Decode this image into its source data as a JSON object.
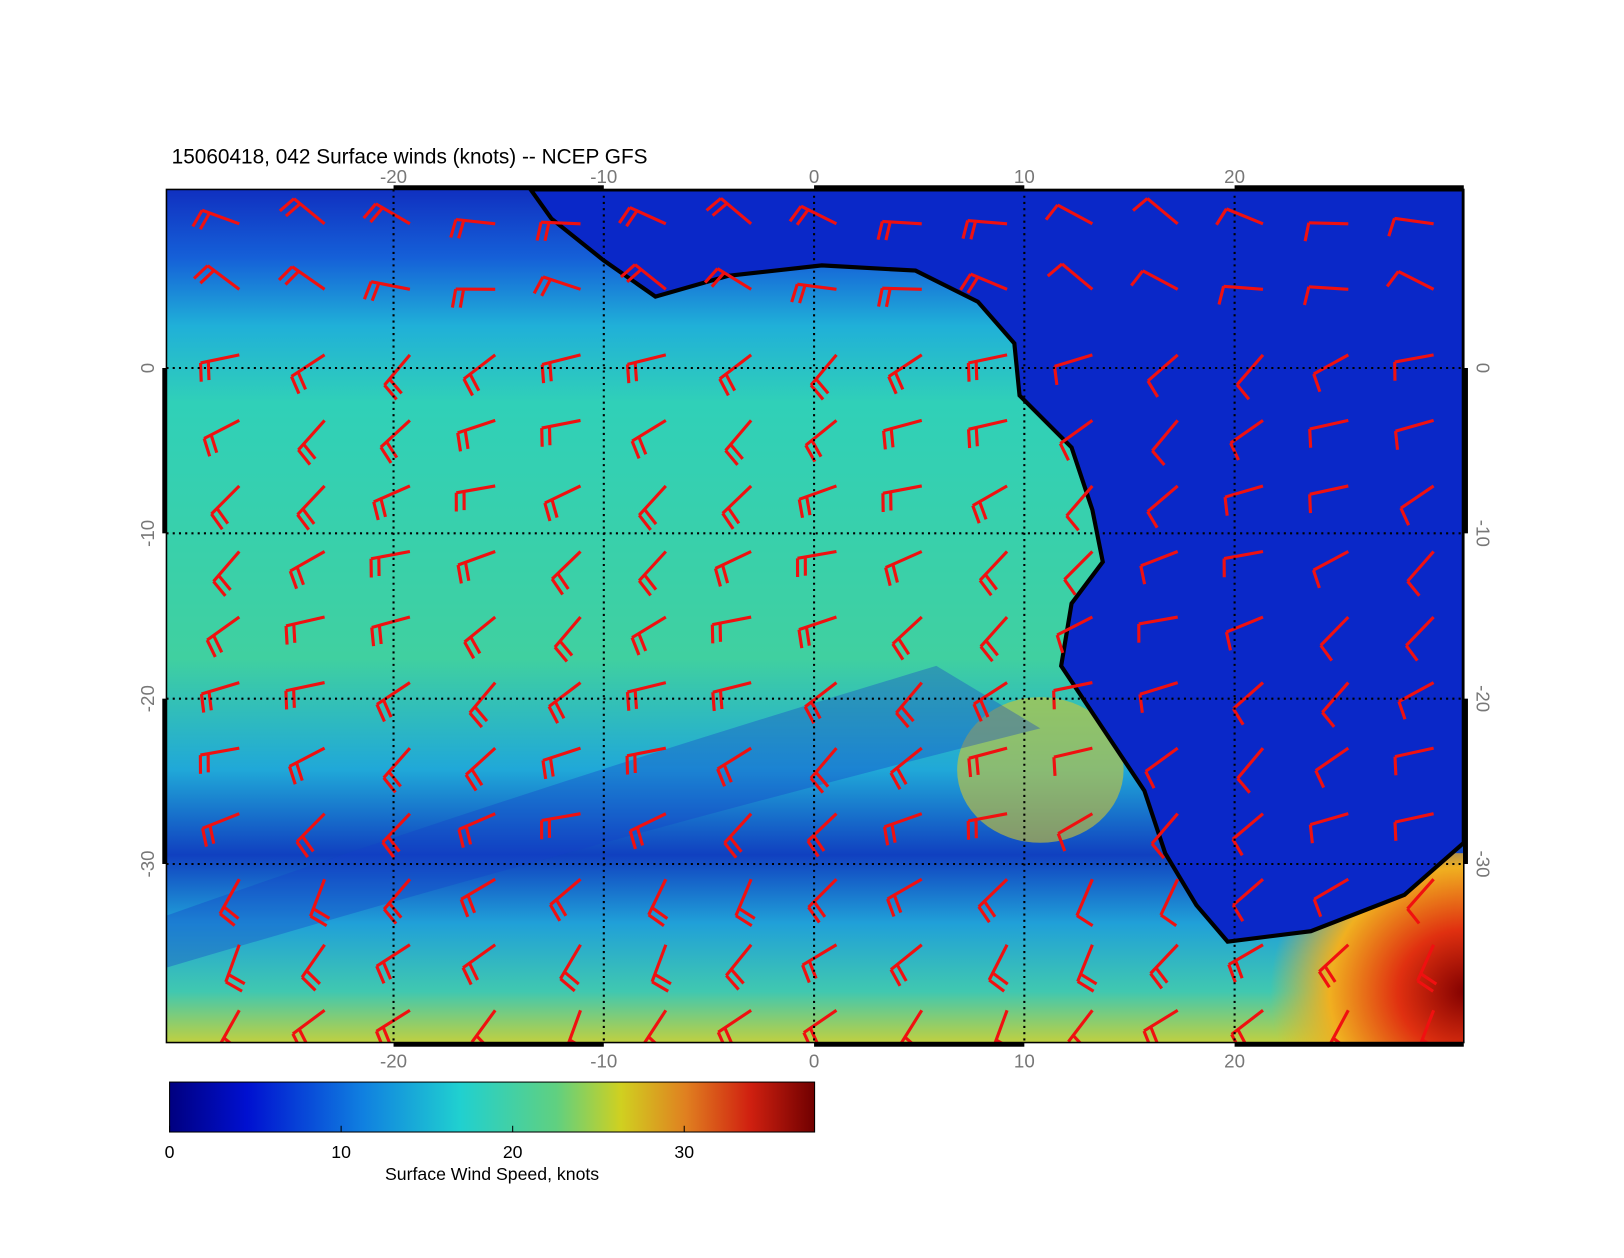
{
  "title": "15060418, 042 Surface winds (knots) -- NCEP GFS",
  "map": {
    "xlim": [
      -30.8,
      30.9
    ],
    "ylim": [
      -40.8,
      10.8
    ],
    "xticks": [
      -20,
      -10,
      0,
      10,
      20
    ],
    "yticks": [
      0,
      -10,
      -20,
      -30
    ],
    "grid": true
  },
  "colorbar": {
    "label": "Surface Wind Speed, knots",
    "lim": [
      0,
      37.6
    ],
    "ticks": [
      0,
      10,
      20,
      30
    ]
  }
}
